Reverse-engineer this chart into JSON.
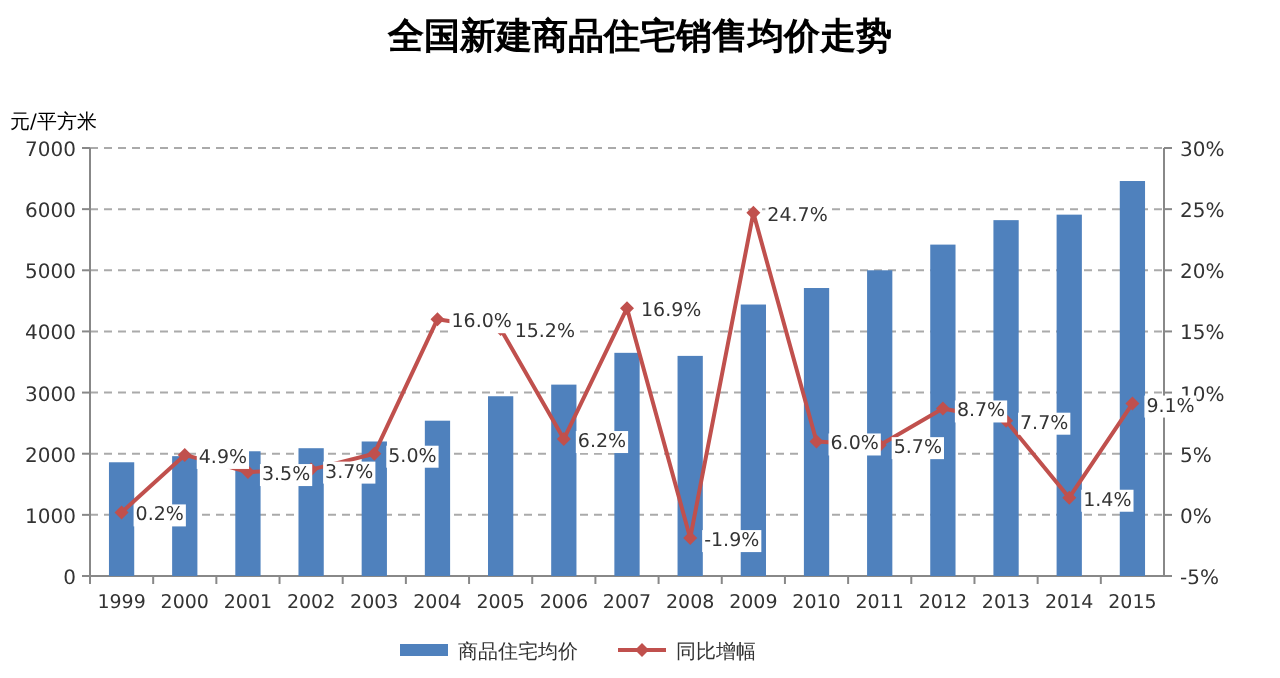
{
  "chart_data": {
    "type": "bar",
    "title": "全国新建商品住宅销售均价走势",
    "ylabel": "元/平方米",
    "categories": [
      "1999",
      "2000",
      "2001",
      "2002",
      "2003",
      "2004",
      "2005",
      "2006",
      "2007",
      "2008",
      "2009",
      "2010",
      "2011",
      "2012",
      "2013",
      "2014",
      "2015"
    ],
    "series": [
      {
        "name": "商品住宅均价",
        "color": "#4f81bd",
        "values": [
          1860,
          1960,
          2040,
          2090,
          2200,
          2540,
          2940,
          3130,
          3650,
          3600,
          4440,
          4710,
          5000,
          5420,
          5820,
          5910,
          6460
        ]
      },
      {
        "name": "同比增幅",
        "type": "line",
        "axis": "y2",
        "color": "#c0504d",
        "marker": "diamond",
        "value_labels": [
          "0.2%",
          "4.9%",
          "3.5%",
          "3.7%",
          "5.0%",
          "16.0%",
          "15.2%",
          "6.2%",
          "16.9%",
          "-1.9%",
          "24.7%",
          "6.0%",
          "5.7%",
          "8.7%",
          "7.7%",
          "1.4%",
          "9.1%"
        ],
        "values": [
          0.2,
          4.9,
          3.5,
          3.7,
          5.0,
          16.0,
          15.2,
          6.2,
          16.9,
          -1.9,
          24.7,
          6.0,
          5.7,
          8.7,
          7.7,
          1.4,
          9.1
        ]
      }
    ],
    "ylim": [
      0,
      7000
    ],
    "yticks": [
      0,
      1000,
      2000,
      3000,
      4000,
      5000,
      6000,
      7000
    ],
    "y2lim": [
      -5,
      30
    ],
    "y2ticks": [
      {
        "value": -5,
        "label": "-5%"
      },
      {
        "value": 0,
        "label": "0%"
      },
      {
        "value": 5,
        "label": "5%"
      },
      {
        "value": 10,
        "label": "10%"
      },
      {
        "value": 15,
        "label": "15%"
      },
      {
        "value": 20,
        "label": "20%"
      },
      {
        "value": 25,
        "label": "25%"
      },
      {
        "value": 30,
        "label": "30%"
      }
    ],
    "grid": "y",
    "legend": "bottom"
  }
}
